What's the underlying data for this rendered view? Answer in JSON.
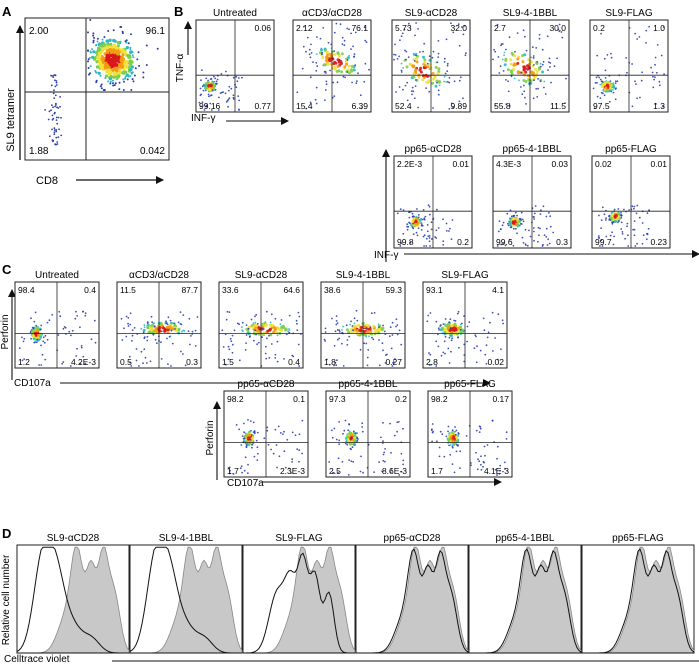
{
  "panel_letters": [
    "A",
    "B",
    "C",
    "D"
  ],
  "panel_a": {
    "y_axis_label": "SL9 tetramer",
    "x_axis_label": "CD8",
    "quadrants": {
      "tl": "2.00",
      "tr": "96.1",
      "bl": "1.88",
      "br": "0.042"
    }
  },
  "panel_b": {
    "y_axis_label": "TNF-α",
    "x_axis_label": "INF-γ",
    "plots": [
      {
        "title": "Untreated",
        "q": [
          "",
          "0.06",
          "99.16",
          "0.77"
        ]
      },
      {
        "title": "αCD3/αCD28",
        "q": [
          "2.12",
          "76.1",
          "15.4",
          "6.39"
        ]
      },
      {
        "title": "SL9-αCD28",
        "q": [
          "5.73",
          "32.0",
          "52.4",
          "9.89"
        ]
      },
      {
        "title": "SL9-4-1BBL",
        "q": [
          "2.7",
          "30.0",
          "55.8",
          "11.5"
        ]
      },
      {
        "title": "SL9-FLAG",
        "q": [
          "0.2",
          "1.0",
          "97.5",
          "1.3"
        ]
      },
      {
        "title": "pp65-αCD28",
        "q": [
          "2.2E-3",
          "0.01",
          "99.8",
          "0.2"
        ]
      },
      {
        "title": "pp65-4-1BBL",
        "q": [
          "4.3E-3",
          "0.03",
          "99.6",
          "0.3"
        ]
      },
      {
        "title": "pp65-FLAG",
        "q": [
          "0.02",
          "0.01",
          "99.7",
          "0.23"
        ]
      }
    ]
  },
  "panel_c": {
    "y_axis_label": "Perforin",
    "x_axis_label": "CD107a",
    "plots": [
      {
        "title": "Untreated",
        "q": [
          "98.4",
          "0.4",
          "1.2",
          "4.2E-3"
        ]
      },
      {
        "title": "αCD3/αCD28",
        "q": [
          "11.5",
          "87.7",
          "0.5",
          "0.3"
        ]
      },
      {
        "title": "SL9-αCD28",
        "q": [
          "33.6",
          "64.6",
          "1.5",
          "0.4"
        ]
      },
      {
        "title": "SL9-4-1BBL",
        "q": [
          "38.6",
          "59.3",
          "1.8",
          "0.27"
        ]
      },
      {
        "title": "SL9-FLAG",
        "q": [
          "93.1",
          "4.1",
          "2.8",
          "0.02"
        ]
      },
      {
        "title": "pp65-αCD28",
        "q": [
          "98.2",
          "0.1",
          "1.7",
          "2.3E-3"
        ]
      },
      {
        "title": "pp65-4-1BBL",
        "q": [
          "97.3",
          "0.2",
          "2.5",
          "8.6E-3"
        ]
      },
      {
        "title": "pp65-FLAG",
        "q": [
          "98.2",
          "0.17",
          "1.7",
          "4.1E-3"
        ]
      }
    ]
  },
  "panel_d": {
    "y_axis_label": "Relative cell number",
    "x_axis_label": "Celltrace violet",
    "plots": [
      {
        "title": "SL9-αCD28"
      },
      {
        "title": "SL9-4-1BBL"
      },
      {
        "title": "SL9-FLAG"
      },
      {
        "title": "pp65-αCD28"
      },
      {
        "title": "pp65-4-1BBL"
      },
      {
        "title": "pp65-FLAG"
      }
    ]
  },
  "chart_data": [
    {
      "type": "scatter",
      "panel": "A",
      "xlabel": "CD8",
      "ylabel": "SL9 tetramer",
      "quadrant_percent": {
        "top_left": 2.0,
        "top_right": 96.1,
        "bottom_left": 1.88,
        "bottom_right": 0.042
      }
    },
    {
      "type": "table",
      "panel": "B",
      "xlabel": "INF-γ",
      "ylabel": "TNF-α",
      "columns": [
        "condition",
        "top_left",
        "top_right",
        "bottom_left",
        "bottom_right"
      ],
      "rows": [
        [
          "Untreated",
          null,
          0.06,
          99.16,
          0.77
        ],
        [
          "αCD3/αCD28",
          2.12,
          76.1,
          15.4,
          6.39
        ],
        [
          "SL9-αCD28",
          5.73,
          32.0,
          52.4,
          9.89
        ],
        [
          "SL9-4-1BBL",
          2.7,
          30.0,
          55.8,
          11.5
        ],
        [
          "SL9-FLAG",
          0.2,
          1.0,
          97.5,
          1.3
        ],
        [
          "pp65-αCD28",
          0.0022,
          0.01,
          99.8,
          0.2
        ],
        [
          "pp65-4-1BBL",
          0.0043,
          0.03,
          99.6,
          0.3
        ],
        [
          "pp65-FLAG",
          0.02,
          0.01,
          99.7,
          0.23
        ]
      ]
    },
    {
      "type": "table",
      "panel": "C",
      "xlabel": "CD107a",
      "ylabel": "Perforin",
      "columns": [
        "condition",
        "top_left",
        "top_right",
        "bottom_left",
        "bottom_right"
      ],
      "rows": [
        [
          "Untreated",
          98.4,
          0.4,
          1.2,
          0.0042
        ],
        [
          "αCD3/αCD28",
          11.5,
          87.7,
          0.5,
          0.3
        ],
        [
          "SL9-αCD28",
          33.6,
          64.6,
          1.5,
          0.4
        ],
        [
          "SL9-4-1BBL",
          38.6,
          59.3,
          1.8,
          0.27
        ],
        [
          "SL9-FLAG",
          93.1,
          4.1,
          2.8,
          0.02
        ],
        [
          "pp65-αCD28",
          98.2,
          0.1,
          1.7,
          0.0023
        ],
        [
          "pp65-4-1BBL",
          97.3,
          0.2,
          2.5,
          0.0086
        ],
        [
          "pp65-FLAG",
          98.2,
          0.17,
          1.7,
          0.0041
        ]
      ]
    },
    {
      "type": "area",
      "panel": "D",
      "xlabel": "Celltrace violet",
      "ylabel": "Relative cell number",
      "categories": [
        "SL9-αCD28",
        "SL9-4-1BBL",
        "SL9-FLAG",
        "pp65-αCD28",
        "pp65-4-1BBL",
        "pp65-FLAG"
      ]
    }
  ]
}
